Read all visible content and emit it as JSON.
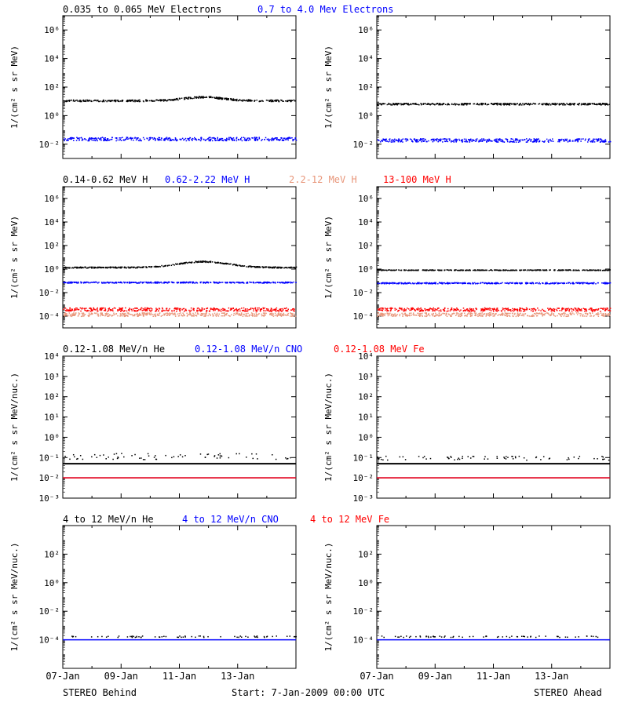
{
  "header_labels": {
    "row1": [
      {
        "text": "0.035 to 0.065 MeV Electrons",
        "color": "#000000"
      },
      {
        "text": "0.7 to 4.0 Mev Electrons",
        "color": "#0000ff"
      }
    ],
    "row2": [
      {
        "text": "0.14-0.62 MeV H",
        "color": "#000000"
      },
      {
        "text": "0.62-2.22 MeV H",
        "color": "#0000ff"
      },
      {
        "text": "2.2-12 MeV H",
        "color": "#e8967a"
      },
      {
        "text": "13-100 MeV H",
        "color": "#ff0000"
      }
    ],
    "row3": [
      {
        "text": "0.12-1.08 MeV/n He",
        "color": "#000000"
      },
      {
        "text": "0.12-1.08 MeV/n CNO",
        "color": "#0000ff"
      },
      {
        "text": "0.12-1.08 MeV Fe",
        "color": "#ff0000"
      }
    ],
    "row4": [
      {
        "text": "4 to 12 MeV/n He",
        "color": "#000000"
      },
      {
        "text": "4 to 12 MeV/n CNO",
        "color": "#0000ff"
      },
      {
        "text": "4 to 12 MeV Fe",
        "color": "#ff0000"
      }
    ]
  },
  "footer": {
    "left": "STEREO Behind",
    "center": "Start:  7-Jan-2009 00:00 UTC",
    "right": "STEREO Ahead"
  },
  "chart_data": [
    {
      "id": "r1-behind",
      "type": "scatter",
      "ylabel": "1/(cm² s sr MeV)",
      "yscale": "log",
      "ylim": [
        0.001,
        10000000
      ],
      "ytick_exponents": [
        -2,
        0,
        2,
        4,
        6
      ],
      "xlabel": "",
      "series": [
        {
          "color": "#000000",
          "level": 12,
          "noise": 0.06,
          "bump": {
            "center": 0.6,
            "width": 0.12,
            "amp": 0.25
          }
        },
        {
          "color": "#0000ff",
          "level": 0.025,
          "noise": 0.12
        }
      ]
    },
    {
      "id": "r1-ahead",
      "type": "scatter",
      "ylabel": "1/(cm² s sr MeV)",
      "yscale": "log",
      "ylim": [
        0.001,
        10000000
      ],
      "ytick_exponents": [
        -2,
        0,
        2,
        4,
        6
      ],
      "xlabel": "",
      "series": [
        {
          "color": "#000000",
          "level": 7,
          "noise": 0.06
        },
        {
          "color": "#0000ff",
          "level": 0.02,
          "noise": 0.12
        }
      ]
    },
    {
      "id": "r2-behind",
      "type": "scatter",
      "ylabel": "1/(cm² s sr MeV)",
      "yscale": "log",
      "ylim": [
        1e-05,
        10000000
      ],
      "ytick_exponents": [
        -4,
        -2,
        0,
        2,
        4,
        6
      ],
      "xlabel": "",
      "series": [
        {
          "color": "#000000",
          "level": 1.5,
          "noise": 0.05,
          "bump": {
            "center": 0.6,
            "width": 0.15,
            "amp": 0.5
          }
        },
        {
          "color": "#0000ff",
          "level": 0.08,
          "noise": 0.05
        },
        {
          "color": "#e8967a",
          "level": 0.00015,
          "noise": 0.15
        },
        {
          "color": "#ff0000",
          "level": 0.0004,
          "noise": 0.15
        }
      ]
    },
    {
      "id": "r2-ahead",
      "type": "scatter",
      "ylabel": "1/(cm² s sr MeV)",
      "yscale": "log",
      "ylim": [
        1e-05,
        10000000
      ],
      "ytick_exponents": [
        -4,
        -2,
        0,
        2,
        4,
        6
      ],
      "xlabel": "",
      "series": [
        {
          "color": "#000000",
          "level": 0.9,
          "noise": 0.03
        },
        {
          "color": "#0000ff",
          "level": 0.07,
          "noise": 0.05
        },
        {
          "color": "#e8967a",
          "level": 0.00015,
          "noise": 0.15
        },
        {
          "color": "#ff0000",
          "level": 0.0004,
          "noise": 0.15
        }
      ]
    },
    {
      "id": "r3-behind",
      "type": "scatter",
      "ylabel": "1/(cm² s sr MeV/nuc.)",
      "yscale": "log",
      "ylim": [
        0.001,
        10000
      ],
      "ytick_exponents": [
        -3,
        -2,
        -1,
        0,
        1,
        2,
        3,
        4
      ],
      "xlabel": "",
      "series": [
        {
          "color": "#000000",
          "level": 0.05,
          "noise": 0.0,
          "line": true
        },
        {
          "color": "#000000",
          "level": 0.12,
          "noise": 0.15,
          "sparse": true
        },
        {
          "color": "#0000ff",
          "level": 0.01,
          "noise": 0.0,
          "line": true
        },
        {
          "color": "#ff0000",
          "level": 0.01,
          "noise": 0.0,
          "line": true
        }
      ]
    },
    {
      "id": "r3-ahead",
      "type": "scatter",
      "ylabel": "1/(cm² s sr MeV/nuc.)",
      "yscale": "log",
      "ylim": [
        0.001,
        10000
      ],
      "ytick_exponents": [
        -3,
        -2,
        -1,
        0,
        1,
        2,
        3,
        4
      ],
      "xlabel": "",
      "series": [
        {
          "color": "#000000",
          "level": 0.05,
          "noise": 0.0,
          "line": true
        },
        {
          "color": "#000000",
          "level": 0.1,
          "noise": 0.1,
          "sparse": true
        },
        {
          "color": "#0000ff",
          "level": 0.01,
          "noise": 0.0,
          "line": true
        },
        {
          "color": "#ff0000",
          "level": 0.01,
          "noise": 0.0,
          "line": true
        }
      ]
    },
    {
      "id": "r4-behind",
      "type": "scatter",
      "ylabel": "1/(cm² s sr MeV/nuc.)",
      "yscale": "log",
      "ylim": [
        1e-06,
        10000
      ],
      "ytick_exponents": [
        -4,
        -2,
        0,
        2
      ],
      "xlabel": "",
      "series": [
        {
          "color": "#0000ff",
          "level": 0.0001,
          "noise": 0.0,
          "line": true
        },
        {
          "color": "#000000",
          "level": 0.00018,
          "noise": 0.05,
          "sparse": true
        }
      ]
    },
    {
      "id": "r4-ahead",
      "type": "scatter",
      "ylabel": "1/(cm² s sr MeV/nuc.)",
      "yscale": "log",
      "ylim": [
        1e-06,
        10000
      ],
      "ytick_exponents": [
        -4,
        -2,
        0,
        2
      ],
      "xlabel": "",
      "series": [
        {
          "color": "#0000ff",
          "level": 0.0001,
          "noise": 0.0,
          "line": true
        },
        {
          "color": "#000000",
          "level": 0.00018,
          "noise": 0.05,
          "sparse": true
        }
      ]
    }
  ],
  "x_axis": {
    "start": "07-Jan-2009 00:00",
    "span_days": 8,
    "tick_labels": [
      "07-Jan",
      "09-Jan",
      "11-Jan",
      "13-Jan"
    ]
  }
}
